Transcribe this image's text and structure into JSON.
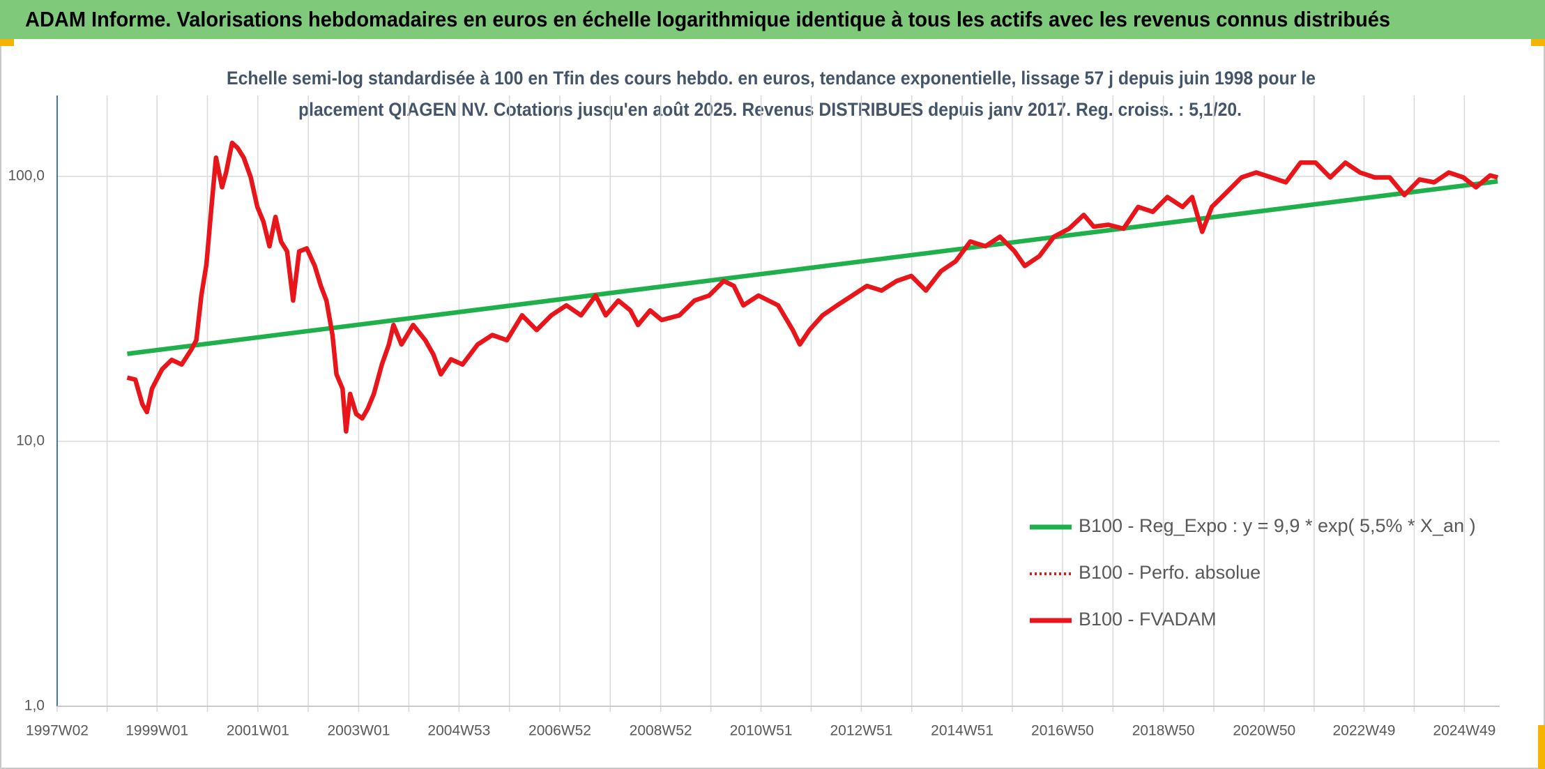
{
  "chart_data": {
    "type": "line",
    "title": "ADAM Informe. Valorisations hebdomadaires en euros en échelle logarithmique identique à tous les actifs avec les revenus connus distribués",
    "subtitle": [
      "Echelle semi-log standardisée à 100 en Tfin des cours hebdo. en euros, tendance exponentielle, lissage 57 j depuis juin 1998 pour le",
      "placement QIAGEN NV. Cotations jusqu'en août 2025. Revenus DISTRIBUES depuis janv 2017. Reg. croiss. : 5,1/20."
    ],
    "log_y": true,
    "grid": true,
    "legend_position": "right",
    "ylim": [
      1,
      202
    ],
    "yticks": [
      {
        "value": 1,
        "label": "1,0"
      },
      {
        "value": 10,
        "label": "10,0"
      },
      {
        "value": 100,
        "label": "100,0"
      }
    ],
    "xlim": [
      1997.02,
      2025.63
    ],
    "xticks": [
      {
        "value": 1997.02,
        "label": "1997W02"
      },
      {
        "value": 1999.0,
        "label": "1999W01"
      },
      {
        "value": 2001.0,
        "label": "2001W01"
      },
      {
        "value": 2003.0,
        "label": "2003W01"
      },
      {
        "value": 2004.99,
        "label": "2004W53"
      },
      {
        "value": 2006.99,
        "label": "2006W52"
      },
      {
        "value": 2008.99,
        "label": "2008W52"
      },
      {
        "value": 2010.98,
        "label": "2010W51"
      },
      {
        "value": 2012.97,
        "label": "2012W51"
      },
      {
        "value": 2014.97,
        "label": "2014W51"
      },
      {
        "value": 2016.96,
        "label": "2016W50"
      },
      {
        "value": 2018.96,
        "label": "2018W50"
      },
      {
        "value": 2020.96,
        "label": "2020W50"
      },
      {
        "value": 2022.94,
        "label": "2022W49"
      },
      {
        "value": 2024.93,
        "label": "2024W49"
      }
    ],
    "series": [
      {
        "name": "B100 - Reg_Expo : y = 9,9 * exp( 5,5% *  X_an )",
        "color": "#1fb04c",
        "dash": "solid",
        "x": [
          1998.41,
          2025.59
        ],
        "values": [
          21.4,
          95.8
        ]
      },
      {
        "name": "B100 - Perfo. absolue",
        "color": "#e8161b",
        "dash": "dotted",
        "x": [],
        "values": []
      },
      {
        "name": "B100 - FVADAM",
        "color": "#e8161b",
        "dash": "solid",
        "x": [
          1998.41,
          1998.57,
          1998.71,
          1998.8,
          1998.9,
          1999.1,
          1999.29,
          1999.49,
          1999.68,
          1999.78,
          1999.88,
          1999.98,
          2000.08,
          2000.17,
          2000.29,
          2000.37,
          2000.49,
          2000.6,
          2000.72,
          2000.86,
          2000.99,
          2001.11,
          2001.23,
          2001.35,
          2001.46,
          2001.58,
          2001.7,
          2001.82,
          2001.97,
          2002.13,
          2002.25,
          2002.36,
          2002.48,
          2002.56,
          2002.68,
          2002.75,
          2002.83,
          2002.95,
          2003.07,
          2003.18,
          2003.3,
          2003.46,
          2003.6,
          2003.69,
          2003.85,
          2004.08,
          2004.32,
          2004.48,
          2004.63,
          2004.83,
          2005.06,
          2005.36,
          2005.65,
          2005.94,
          2006.24,
          2006.53,
          2006.82,
          2007.12,
          2007.41,
          2007.7,
          2007.9,
          2008.15,
          2008.39,
          2008.54,
          2008.78,
          2009.01,
          2009.36,
          2009.66,
          2009.95,
          2010.24,
          2010.44,
          2010.63,
          2010.93,
          2011.32,
          2011.61,
          2011.75,
          2011.94,
          2012.2,
          2012.49,
          2012.79,
          2013.08,
          2013.37,
          2013.67,
          2013.96,
          2014.25,
          2014.55,
          2014.84,
          2015.13,
          2015.43,
          2015.72,
          2016.01,
          2016.21,
          2016.5,
          2016.79,
          2017.09,
          2017.38,
          2017.58,
          2017.87,
          2018.17,
          2018.46,
          2018.75,
          2019.04,
          2019.34,
          2019.53,
          2019.73,
          2019.92,
          2020.22,
          2020.51,
          2020.8,
          2021.1,
          2021.39,
          2021.68,
          2021.98,
          2022.27,
          2022.57,
          2022.86,
          2023.15,
          2023.45,
          2023.74,
          2024.04,
          2024.33,
          2024.62,
          2024.91,
          2025.16,
          2025.44,
          2025.59
        ],
        "values": [
          17.4,
          17.1,
          13.8,
          12.9,
          15.8,
          18.7,
          20.3,
          19.5,
          22.2,
          24.1,
          35.5,
          46.6,
          76.7,
          117.7,
          91,
          103.5,
          133.9,
          128,
          117.7,
          99.1,
          76.7,
          67.5,
          54.5,
          70.3,
          56.8,
          52.1,
          34,
          52.1,
          53.5,
          45.9,
          38.6,
          34,
          25.2,
          17.9,
          15.8,
          10.9,
          15.1,
          12.7,
          12.2,
          13.3,
          15.1,
          19.5,
          23.2,
          27.5,
          23.2,
          27.5,
          24.1,
          21.3,
          17.9,
          20.4,
          19.5,
          23.2,
          25.2,
          24.1,
          29.9,
          26.3,
          29.9,
          32.6,
          29.9,
          35.5,
          29.9,
          34,
          31.2,
          27.5,
          31.2,
          28.7,
          29.9,
          34,
          35.5,
          40.3,
          38.6,
          32.6,
          35.5,
          32.6,
          26.3,
          23.2,
          26.3,
          29.9,
          32.6,
          35.5,
          38.6,
          37.1,
          40.3,
          42.1,
          37.1,
          43.9,
          47.8,
          56.8,
          54.5,
          59.2,
          52.1,
          45.9,
          50,
          59.2,
          63.5,
          71.6,
          64.6,
          65.7,
          63.5,
          76.7,
          73.5,
          83.6,
          76.7,
          83.6,
          61.8,
          76.7,
          87.3,
          99.1,
          103.5,
          99.1,
          95,
          112.7,
          112.7,
          99.1,
          112.7,
          103.5,
          99.1,
          99.1,
          85,
          97.4,
          95,
          103.5,
          99.1,
          91,
          100.9,
          99.1
        ]
      }
    ]
  }
}
